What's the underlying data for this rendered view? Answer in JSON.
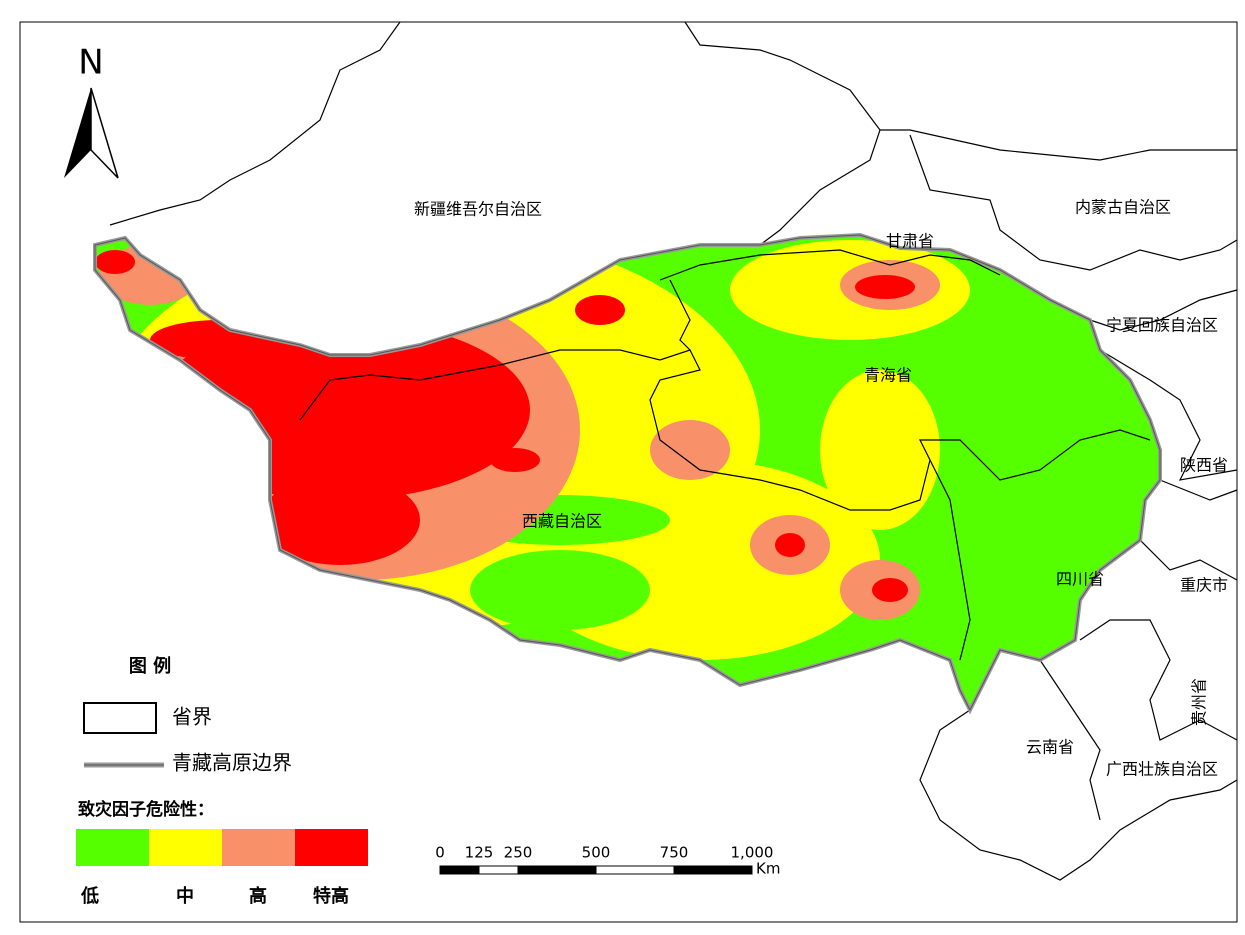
{
  "north_arrow": "N",
  "regions": [
    "新疆维吾尔自治区",
    "内蒙古自治区",
    "甘肃省",
    "宁夏回族自治区",
    "青海省",
    "陕西省",
    "西藏自治区",
    "四川省",
    "重庆市",
    "贵州省",
    "云南省",
    "广西壮族自治区"
  ],
  "legend": {
    "title": "图 例",
    "boundary_items": [
      "省界",
      "青藏高原边界"
    ],
    "hazard_title": "致灾因子危险性：",
    "levels": [
      {
        "label": "低",
        "color": "#55ff00"
      },
      {
        "label": "中",
        "color": "#ffff00"
      },
      {
        "label": "高",
        "color": "#f8906a"
      },
      {
        "label": "特高",
        "color": "#ff0000"
      }
    ]
  },
  "scale_bar": {
    "ticks": [
      0,
      125,
      250,
      500,
      750,
      {
        "value": 1000,
        "label": "1,000"
      }
    ],
    "unit": "Km"
  }
}
